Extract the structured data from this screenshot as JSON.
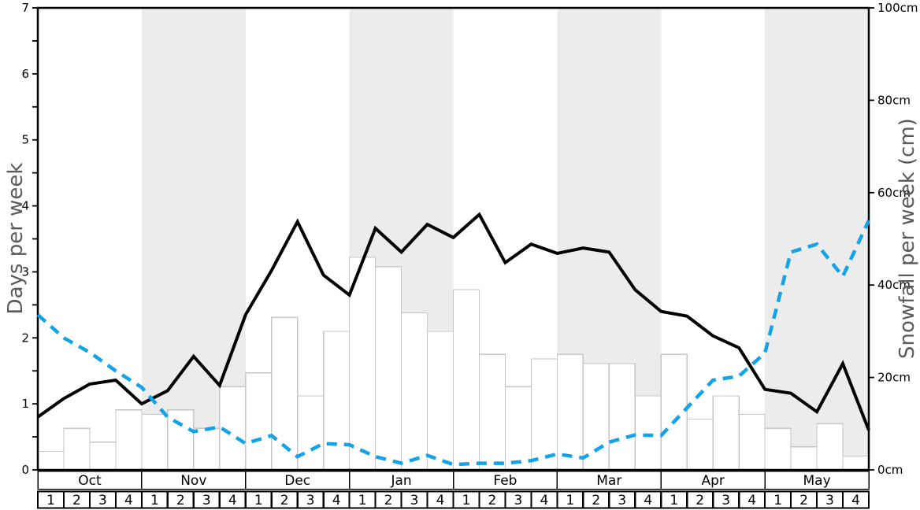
{
  "chart_data": {
    "type": "line+bar",
    "title": "",
    "months": [
      "Oct",
      "Nov",
      "Dec",
      "Jan",
      "Feb",
      "Mar",
      "Apr",
      "May"
    ],
    "week_labels": [
      "1",
      "2",
      "3",
      "4"
    ],
    "shaded_months": [
      "Nov",
      "Jan",
      "Mar",
      "May"
    ],
    "left_axis": {
      "label": "Days per week",
      "min": 0,
      "max": 7,
      "major_ticks": [
        0,
        1,
        2,
        3,
        4,
        5,
        6,
        7
      ],
      "minor_tick_step": 0.5
    },
    "right_axis": {
      "label": "Snowfall per week (cm)",
      "min": 0,
      "max": 100,
      "tick_values": [
        0,
        20,
        40,
        60,
        80,
        100
      ],
      "tick_labels": [
        "0cm",
        "20cm",
        "40cm",
        "60cm",
        "80cm",
        "100cm"
      ]
    },
    "series": [
      {
        "name": "snowfall_per_week_cm",
        "type": "bar",
        "axis": "right",
        "unit": "cm",
        "values": [
          4,
          9,
          6,
          13,
          12,
          13,
          9,
          18,
          21,
          33,
          16,
          30,
          46,
          44,
          34,
          30,
          39,
          25,
          18,
          24,
          25,
          23,
          23,
          16,
          25,
          11,
          16,
          12,
          9,
          5,
          10,
          3
        ]
      },
      {
        "name": "days_line_solid_black",
        "type": "line",
        "style": "solid",
        "axis": "left",
        "values": [
          0.8,
          1.08,
          1.3,
          1.36,
          1.0,
          1.2,
          1.72,
          1.28,
          2.35,
          3.02,
          3.76,
          2.95,
          2.65,
          3.66,
          3.3,
          3.72,
          3.52,
          3.87,
          3.14,
          3.42,
          3.28,
          3.36,
          3.3,
          2.73,
          2.4,
          2.33,
          2.03,
          1.85,
          1.22,
          1.16,
          0.88,
          1.61,
          0.6
        ]
      },
      {
        "name": "days_line_dashed_blue",
        "type": "line",
        "style": "dashed",
        "axis": "left",
        "values": [
          2.35,
          2.0,
          1.78,
          1.5,
          1.25,
          0.8,
          0.58,
          0.65,
          0.4,
          0.52,
          0.2,
          0.4,
          0.38,
          0.2,
          0.1,
          0.22,
          0.08,
          0.1,
          0.1,
          0.14,
          0.24,
          0.18,
          0.42,
          0.53,
          0.52,
          0.94,
          1.36,
          1.42,
          1.77,
          3.3,
          3.42,
          2.93,
          3.78
        ]
      }
    ],
    "colors": {
      "line_black": "#000000",
      "line_blue": "#14a3e8",
      "band_gray": "#ececec",
      "bar_fill": "#ffffff",
      "bar_border": "#c6c6c6",
      "axis_title_gray": "#5a5a5a",
      "tick_label_black": "#000000"
    },
    "layout_hints": {
      "legend": "none",
      "grid": "off",
      "frame": "on"
    }
  }
}
